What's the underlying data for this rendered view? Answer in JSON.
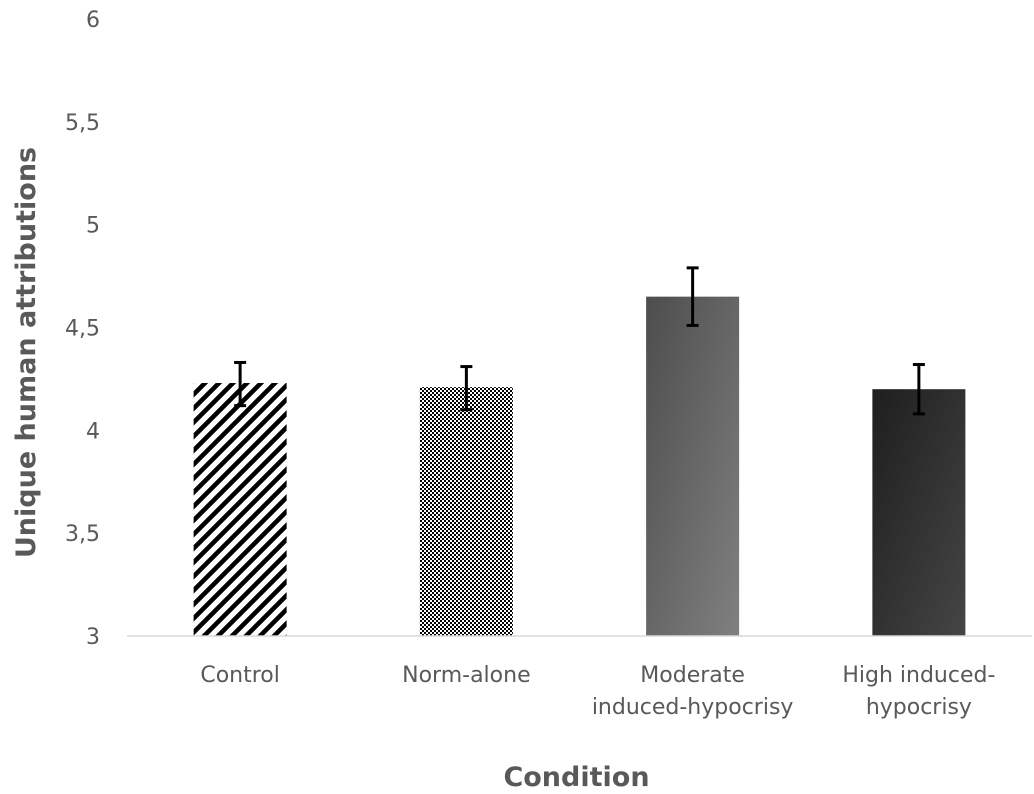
{
  "chart_data": {
    "type": "bar",
    "title": "",
    "xlabel": "Condition",
    "ylabel": "Unique human attributions",
    "ylim": [
      3,
      6
    ],
    "yticks": [
      "3",
      "3,5",
      "4",
      "4,5",
      "5",
      "5,5",
      "6"
    ],
    "ytick_values": [
      3,
      3.5,
      4,
      4.5,
      5,
      5.5,
      6
    ],
    "grid": false,
    "categories": [
      [
        "Control"
      ],
      [
        "Norm-alone"
      ],
      [
        "Moderate",
        "induced-hypocrisy"
      ],
      [
        "High induced-",
        "hypocrisy"
      ]
    ],
    "values": [
      4.23,
      4.21,
      4.65,
      4.2
    ],
    "error_bars": [
      {
        "low": 4.12,
        "high": 4.33
      },
      {
        "low": 4.1,
        "high": 4.31
      },
      {
        "low": 4.51,
        "high": 4.79
      },
      {
        "low": 4.08,
        "high": 4.32
      }
    ],
    "bar_styles": [
      "diagonal-stripes",
      "checker-dots",
      "gray-gradient",
      "dark-gradient"
    ]
  }
}
